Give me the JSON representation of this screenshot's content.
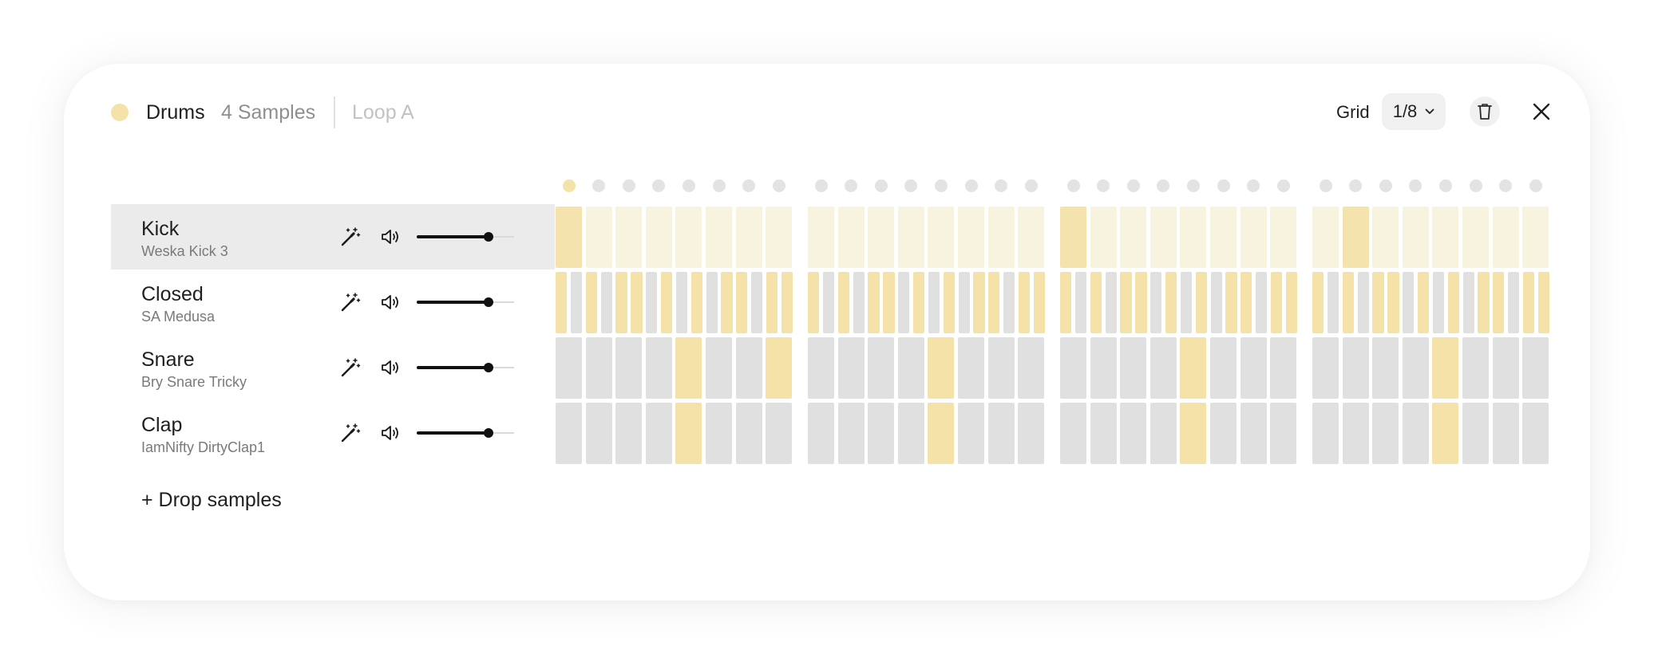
{
  "colors": {
    "accent": "#f5e2a8",
    "accent_strong": "#f4e3ac",
    "accent_soft": "#f8f3df",
    "off": "#e0e0e0",
    "dot_off": "#e3e3e3",
    "selected_row": "#ebebeb"
  },
  "header": {
    "title": "Drums",
    "samples": "4 Samples",
    "loop": "Loop A",
    "grid_label": "Grid",
    "grid_value": "1/8"
  },
  "icons": {
    "instrument_dot": "color-dot-icon",
    "grid_dropdown": "chevron-down-icon",
    "delete": "trash-icon",
    "close": "close-icon",
    "effects": "magic-wand-icon",
    "volume": "speaker-icon"
  },
  "tracks": [
    {
      "name": "Kick",
      "sample": "Weska Kick 3",
      "volume": 0.74,
      "selected": true
    },
    {
      "name": "Closed",
      "sample": "SA Medusa",
      "volume": 0.74,
      "selected": false
    },
    {
      "name": "Snare",
      "sample": "Bry Snare Tricky",
      "volume": 0.74,
      "selected": false
    },
    {
      "name": "Clap",
      "sample": "IamNifty DirtyClap1",
      "volume": 0.74,
      "selected": false
    }
  ],
  "drop_label": "+ Drop samples",
  "sequencer": {
    "bars": 4,
    "steps_per_bar": 8,
    "playhead_step": 0,
    "kick": {
      "active_steps": [
        0,
        16,
        25
      ]
    },
    "closed_hat": {
      "subdivisions": 2,
      "pattern_per_bar": [
        "on",
        "off",
        "on",
        "off",
        "on",
        "on",
        "off",
        "on",
        "off",
        "on",
        "off",
        "on",
        "on",
        "off",
        "on",
        "on"
      ]
    },
    "snare": {
      "active_steps": [
        4,
        7,
        12,
        20,
        28
      ]
    },
    "clap": {
      "active_steps": [
        4,
        12,
        20,
        28
      ]
    }
  }
}
